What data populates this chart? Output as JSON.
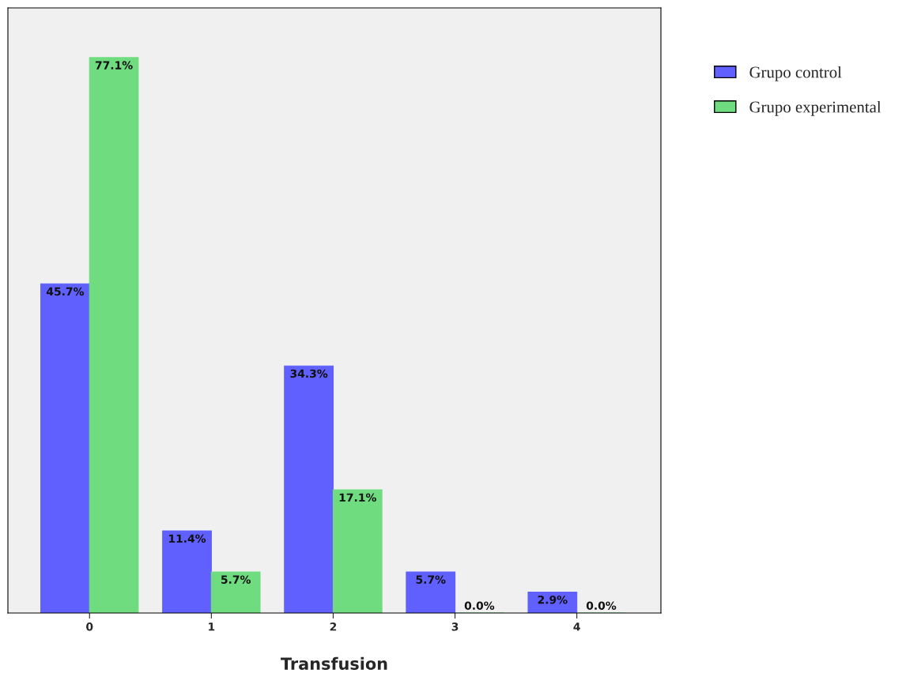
{
  "chart_data": {
    "type": "bar",
    "xlabel": "Transfusion",
    "categories": [
      "0",
      "1",
      "2",
      "3",
      "4"
    ],
    "series": [
      {
        "name": "Grupo control",
        "color": "#6060ff",
        "values": [
          45.7,
          11.4,
          34.3,
          5.7,
          2.9
        ],
        "value_labels": [
          "45.7%",
          "11.4%",
          "34.3%",
          "5.7%",
          "2.9%"
        ]
      },
      {
        "name": "Grupo experimental",
        "color": "#70dc80",
        "values": [
          77.1,
          5.7,
          17.1,
          0.0,
          0.0
        ],
        "value_labels": [
          "77.1%",
          "5.7%",
          "17.1%",
          "0.0%",
          "0.0%"
        ]
      }
    ],
    "legend": "right",
    "grid": false
  }
}
